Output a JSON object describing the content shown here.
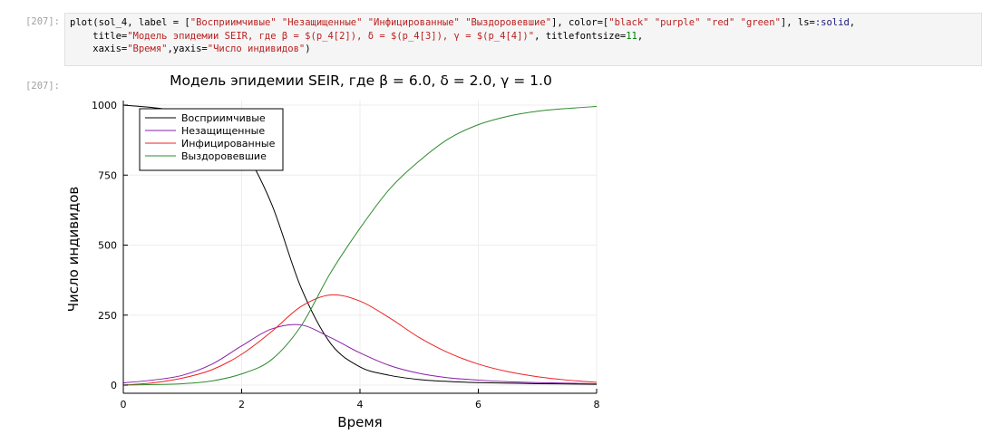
{
  "cell": {
    "in_prompt": "[207]:",
    "out_prompt": "[207]:",
    "code_lines": [
      [
        {
          "t": "plot(sol_4, label = [",
          "c": ""
        },
        {
          "t": "\"Восприимчивые\" \"Незащищенные\" \"Инфицированные\" \"Выздоровевшие\"",
          "c": "str"
        },
        {
          "t": "], color=[",
          "c": ""
        },
        {
          "t": "\"black\" \"purple\" \"red\" \"green\"",
          "c": "str"
        },
        {
          "t": "], ls=",
          "c": ""
        },
        {
          "t": ":solid",
          "c": "sym"
        },
        {
          "t": ",",
          "c": ""
        }
      ],
      [
        {
          "t": "    title=",
          "c": ""
        },
        {
          "t": "\"Модель эпидемии SEIR, где β = $(p_4[2]), δ = $(p_4[3]), γ = $(p_4[4])\"",
          "c": "str"
        },
        {
          "t": ", titlefontsize=",
          "c": ""
        },
        {
          "t": "11",
          "c": "num"
        },
        {
          "t": ",",
          "c": ""
        }
      ],
      [
        {
          "t": "    xaxis=",
          "c": ""
        },
        {
          "t": "\"Время\"",
          "c": "str"
        },
        {
          "t": ",yaxis=",
          "c": ""
        },
        {
          "t": "\"Число индивидов\"",
          "c": "str"
        },
        {
          "t": ")",
          "c": ""
        }
      ]
    ]
  },
  "chart_data": {
    "type": "line",
    "title": "Модель эпидемии SEIR, где β = 6.0, δ = 2.0, γ = 1.0",
    "xlabel": "Время",
    "ylabel": "Число индивидов",
    "xlim": [
      0,
      8
    ],
    "ylim": [
      0,
      1000
    ],
    "xticks": [
      0,
      2,
      4,
      6,
      8
    ],
    "yticks": [
      0,
      250,
      500,
      750,
      1000
    ],
    "grid": true,
    "legend_position": "top-left",
    "x": [
      0,
      0.5,
      1.0,
      1.5,
      2.0,
      2.5,
      3.0,
      3.5,
      4.0,
      4.5,
      5.0,
      5.5,
      6.0,
      6.5,
      7.0,
      7.5,
      8.0
    ],
    "series": [
      {
        "name": "Восприимчивые",
        "color": "#000000",
        "values": [
          1000,
          991,
          975,
          940,
          850,
          650,
          350,
          150,
          65,
          35,
          20,
          13,
          9,
          7,
          5,
          4,
          3
        ]
      },
      {
        "name": "Незащищенные",
        "color": "#8b1fa8",
        "values": [
          8,
          18,
          35,
          75,
          140,
          200,
          215,
          170,
          115,
          70,
          42,
          26,
          18,
          12,
          9,
          7,
          5
        ]
      },
      {
        "name": "Инфицированные",
        "color": "#ee2222",
        "values": [
          0,
          8,
          25,
          55,
          110,
          190,
          280,
          322,
          300,
          240,
          170,
          115,
          75,
          48,
          30,
          18,
          10
        ]
      },
      {
        "name": "Выздоровевшие",
        "color": "#2e8b2e",
        "values": [
          0,
          2,
          5,
          15,
          40,
          90,
          210,
          400,
          560,
          700,
          800,
          880,
          930,
          960,
          978,
          988,
          995
        ]
      }
    ]
  }
}
